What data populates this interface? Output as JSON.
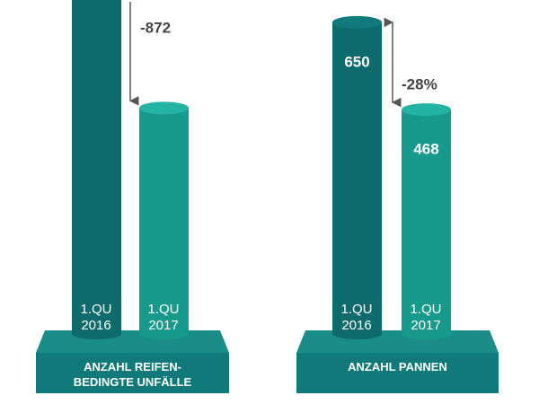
{
  "chart_data": [
    {
      "type": "bar",
      "title": "ANZAHL REIFEN-BEDINGTE UNFÄLLE",
      "categories": [
        "1.QU 2016",
        "1.QU 2017"
      ],
      "values": [
        2270,
        1398
      ],
      "colors": [
        "#0d6a6d",
        "#17998b"
      ],
      "data_labels": false,
      "annotation": "-872"
    },
    {
      "type": "bar",
      "title": "ANZAHL PANNEN",
      "categories": [
        "1.QU 2016",
        "1.QU 2017"
      ],
      "values": [
        650,
        468
      ],
      "colors": [
        "#0d6a6d",
        "#17998b"
      ],
      "data_labels": true,
      "annotation": "-28%"
    }
  ]
}
